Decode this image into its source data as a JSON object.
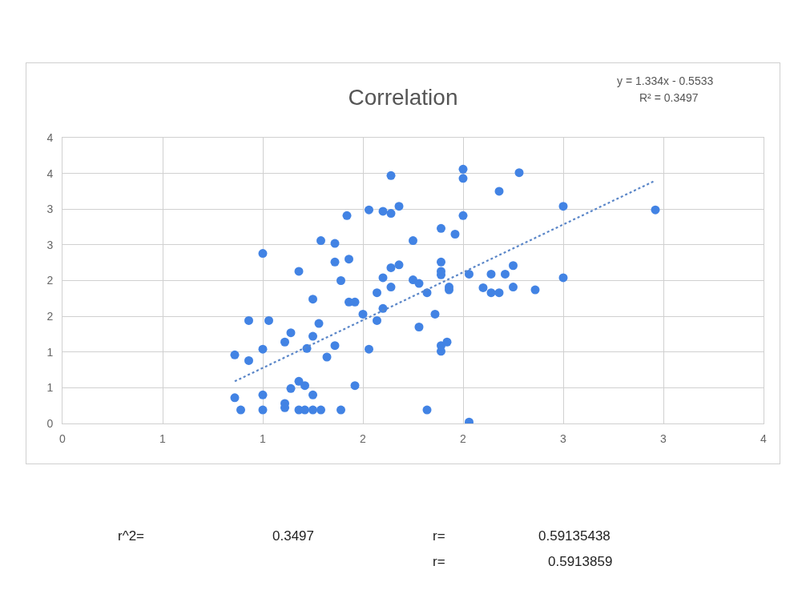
{
  "chart_data": {
    "type": "scatter",
    "title": "Correlation",
    "annotations": [
      "y = 1.334x - 0.5533",
      "R² = 0.3497",
      "r^2=",
      "0.3497",
      "r=",
      "0.59135438",
      "r=",
      "0.5913859"
    ],
    "xlim": [
      0,
      3.5
    ],
    "ylim": [
      0,
      4
    ],
    "xticks": [
      0,
      {
        "value": 0.5,
        "label": "1"
      },
      1,
      {
        "value": 1.5,
        "label": "2"
      },
      2,
      {
        "value": 2.5,
        "label": "3"
      },
      3,
      {
        "value": 3.5,
        "label": "4"
      }
    ],
    "yticks": [
      0,
      {
        "value": 0.5,
        "label": "1"
      },
      1,
      {
        "value": 1.5,
        "label": "2"
      },
      2,
      {
        "value": 2.5,
        "label": "3"
      },
      3,
      {
        "value": 3.5,
        "label": "4"
      },
      4
    ],
    "grid": true,
    "marker": "circle",
    "series": [
      {
        "color": "#4283e4",
        "x": [
          1.64,
          1.53,
          1.6,
          1.64,
          1.68,
          1.42,
          1.29,
          1.36,
          1.0,
          1.75,
          1.36,
          1.43,
          1.18,
          1.39,
          1.6,
          1.68,
          1.64,
          1.64,
          1.75,
          1.78,
          1.57,
          1.25,
          1.43,
          1.46,
          1.5,
          1.6,
          1.57,
          1.78,
          0.93,
          1.03,
          1.28,
          1.14,
          1.25,
          1.11,
          1.22,
          1.0,
          1.36,
          1.53,
          0.86,
          0.93,
          1.32,
          1.46,
          1.18,
          1.21,
          1.14,
          1.25,
          0.86,
          1.0,
          1.11,
          1.11,
          0.89,
          1.0,
          1.18,
          1.21,
          1.25,
          1.29,
          1.39,
          2.0,
          2.0,
          2.28,
          2.18,
          2.5,
          2.96,
          2.0,
          1.89,
          1.96,
          1.89,
          1.89,
          1.89,
          2.03,
          2.14,
          2.21,
          2.25,
          2.5,
          1.82,
          1.93,
          1.93,
          2.1,
          2.14,
          2.18,
          2.25,
          2.36,
          1.86,
          1.89,
          1.89,
          1.92,
          1.82,
          2.03
        ],
        "values": [
          3.47,
          2.99,
          2.97,
          2.94,
          3.04,
          2.91,
          2.56,
          2.52,
          2.38,
          2.56,
          2.26,
          2.3,
          2.13,
          2.0,
          2.04,
          2.22,
          2.18,
          1.91,
          2.01,
          1.96,
          1.83,
          1.74,
          1.7,
          1.7,
          1.53,
          1.61,
          1.44,
          1.35,
          1.44,
          1.44,
          1.4,
          1.27,
          1.22,
          1.14,
          1.05,
          1.04,
          1.09,
          1.04,
          0.96,
          0.88,
          0.93,
          0.53,
          0.59,
          0.53,
          0.49,
          0.4,
          0.36,
          0.4,
          0.28,
          0.22,
          0.19,
          0.19,
          0.19,
          0.19,
          0.19,
          0.19,
          0.19,
          3.56,
          3.43,
          3.51,
          3.25,
          3.04,
          2.99,
          2.91,
          2.73,
          2.65,
          2.26,
          2.13,
          2.08,
          2.09,
          2.09,
          2.09,
          2.21,
          2.04,
          1.83,
          1.91,
          1.87,
          1.9,
          1.83,
          1.83,
          1.91,
          1.87,
          1.53,
          1.01,
          1.09,
          1.14,
          0.19,
          0.02
        ]
      },
      {
        "type": "line",
        "color": "#5a86c8",
        "line_style": "dotted",
        "marker": "none",
        "x": [
          0.86,
          2.96
        ],
        "values": [
          0.59,
          3.4
        ]
      }
    ]
  }
}
